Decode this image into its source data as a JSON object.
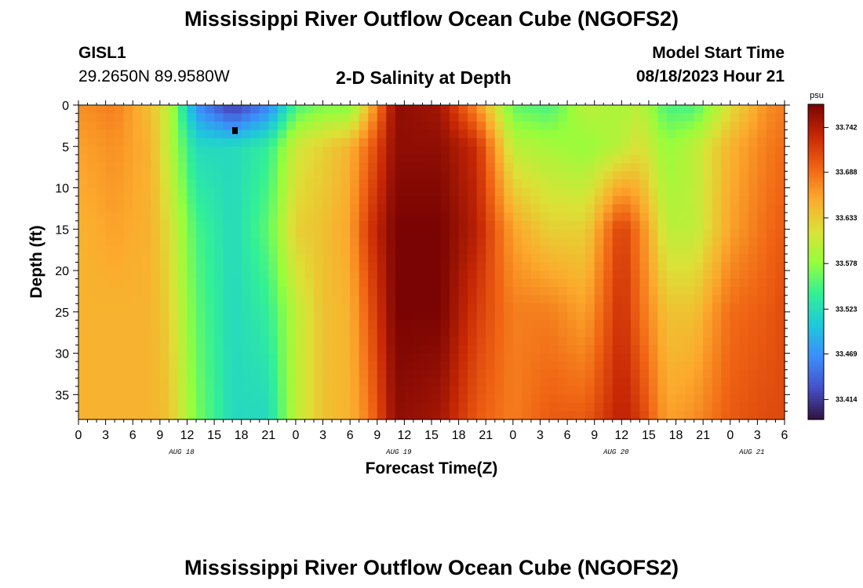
{
  "header": {
    "title": "Mississippi River Outflow Ocean Cube (NGOFS2)",
    "station_id": "GISL1",
    "coordinates": "29.2650N  89.9580W",
    "model_start_label": "Model Start Time",
    "model_start_value": "08/18/2023 Hour 21"
  },
  "footer": {
    "title": "Mississippi River Outflow Ocean Cube (NGOFS2)"
  },
  "chart_data": {
    "type": "heatmap",
    "title": "2-D Salinity at Depth",
    "xlabel": "Forecast Time(Z)",
    "ylabel": "Depth (ft)",
    "x_tick_labels": [
      "0",
      "3",
      "6",
      "9",
      "12",
      "15",
      "18",
      "21",
      "0",
      "3",
      "6",
      "9",
      "12",
      "15",
      "18",
      "21",
      "0",
      "3",
      "6",
      "9",
      "12",
      "15",
      "18",
      "21",
      "0",
      "3",
      "6"
    ],
    "date_labels": [
      {
        "text": "AUG 18",
        "x_hour": 12
      },
      {
        "text": "AUG 19",
        "x_hour": 36
      },
      {
        "text": "AUG 20",
        "x_hour": 60
      },
      {
        "text": "AUG 21",
        "x_hour": 75
      }
    ],
    "x_range_hours": [
      0,
      78
    ],
    "y_ticks": [
      0,
      5,
      10,
      15,
      20,
      25,
      30,
      35
    ],
    "ylim": [
      0,
      38
    ],
    "y_inverted": true,
    "colorbar": {
      "unit": "psu",
      "ticks": [
        33.742,
        33.688,
        33.633,
        33.578,
        33.523,
        33.469,
        33.414
      ],
      "range": [
        33.39,
        33.77
      ],
      "colormap": "turbo"
    },
    "field_profiles": [
      {
        "hour": 0,
        "salinity": [
          33.67,
          33.66,
          33.65,
          33.65,
          33.65
        ]
      },
      {
        "hour": 4,
        "salinity": [
          33.68,
          33.67,
          33.66,
          33.65,
          33.65
        ]
      },
      {
        "hour": 8,
        "salinity": [
          33.64,
          33.65,
          33.65,
          33.65,
          33.65
        ]
      },
      {
        "hour": 10,
        "salinity": [
          33.6,
          33.6,
          33.62,
          33.63,
          33.64
        ]
      },
      {
        "hour": 13,
        "salinity": [
          33.47,
          33.52,
          33.55,
          33.56,
          33.57
        ]
      },
      {
        "hour": 17,
        "salinity": [
          33.41,
          33.52,
          33.52,
          33.52,
          33.52
        ]
      },
      {
        "hour": 21,
        "salinity": [
          33.46,
          33.54,
          33.56,
          33.54,
          33.52
        ]
      },
      {
        "hour": 24,
        "salinity": [
          33.55,
          33.61,
          33.63,
          33.6,
          33.6
        ]
      },
      {
        "hour": 27,
        "salinity": [
          33.57,
          33.63,
          33.64,
          33.64,
          33.64
        ]
      },
      {
        "hour": 30,
        "salinity": [
          33.57,
          33.65,
          33.66,
          33.65,
          33.65
        ]
      },
      {
        "hour": 32,
        "salinity": [
          33.64,
          33.69,
          33.72,
          33.7,
          33.68
        ]
      },
      {
        "hour": 35,
        "salinity": [
          33.76,
          33.76,
          33.77,
          33.77,
          33.76
        ]
      },
      {
        "hour": 40,
        "salinity": [
          33.75,
          33.76,
          33.77,
          33.77,
          33.75
        ]
      },
      {
        "hour": 44,
        "salinity": [
          33.67,
          33.73,
          33.74,
          33.72,
          33.7
        ]
      },
      {
        "hour": 48,
        "salinity": [
          33.56,
          33.6,
          33.66,
          33.68,
          33.68
        ]
      },
      {
        "hour": 52,
        "salinity": [
          33.55,
          33.59,
          33.63,
          33.68,
          33.7
        ]
      },
      {
        "hour": 56,
        "salinity": [
          33.6,
          33.58,
          33.63,
          33.66,
          33.7
        ]
      },
      {
        "hour": 60,
        "salinity": [
          33.59,
          33.6,
          33.72,
          33.73,
          33.74
        ]
      },
      {
        "hour": 62,
        "salinity": [
          33.6,
          33.62,
          33.68,
          33.69,
          33.72
        ]
      },
      {
        "hour": 65,
        "salinity": [
          33.55,
          33.58,
          33.6,
          33.64,
          33.66
        ]
      },
      {
        "hour": 68,
        "salinity": [
          33.55,
          33.6,
          33.6,
          33.64,
          33.67
        ]
      },
      {
        "hour": 72,
        "salinity": [
          33.62,
          33.65,
          33.66,
          33.69,
          33.7
        ]
      },
      {
        "hour": 76,
        "salinity": [
          33.67,
          33.68,
          33.69,
          33.7,
          33.71
        ]
      },
      {
        "hour": 78,
        "salinity": [
          33.68,
          33.69,
          33.7,
          33.71,
          33.71
        ]
      }
    ],
    "field_depths_ft": [
      0,
      5,
      15,
      25,
      38
    ]
  },
  "colors": {
    "marker": "#000000"
  }
}
